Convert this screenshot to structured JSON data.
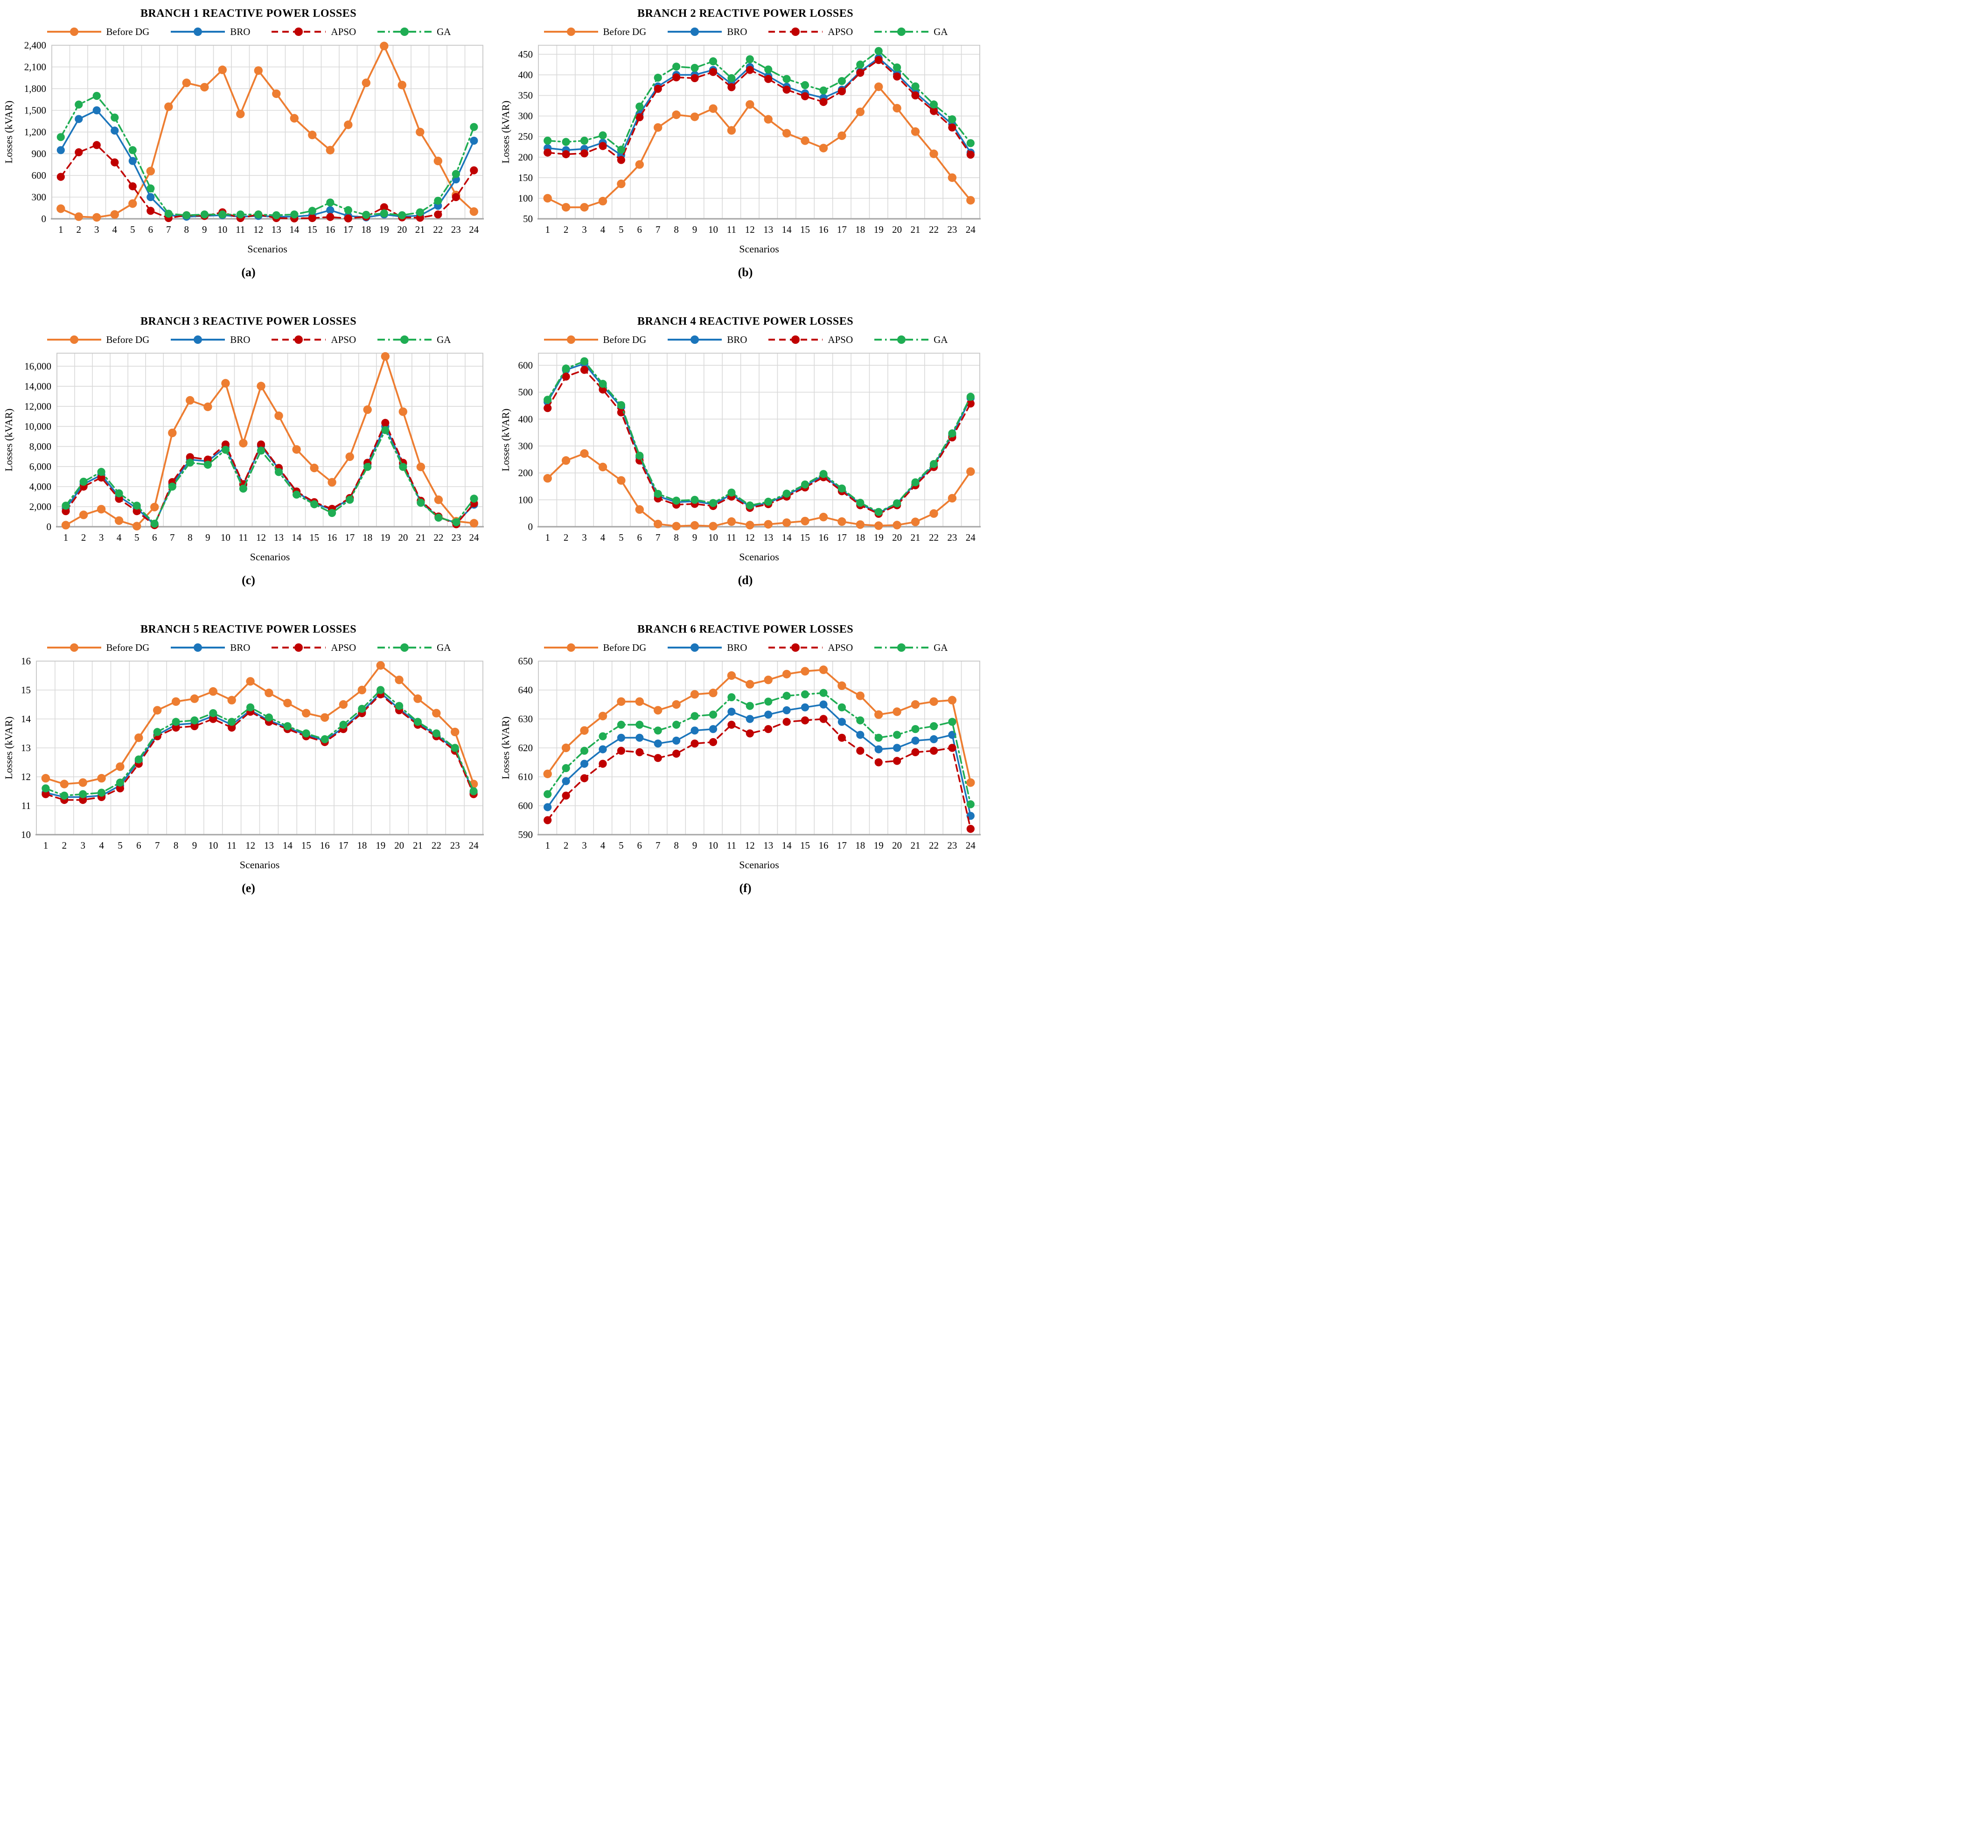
{
  "figure": {
    "background": "#ffffff",
    "grid_color": "#d9d9d9",
    "border_color": "#c9c9c9",
    "axis_color": "#a6a6a6"
  },
  "series_meta": [
    {
      "key": "before_dg",
      "label": "Before DG",
      "color": "#ED7D31",
      "dash": "solid"
    },
    {
      "key": "bro",
      "label": "BRO",
      "color": "#1B75BB",
      "dash": "solid"
    },
    {
      "key": "apso",
      "label": "APSO",
      "color": "#C00000",
      "dash": "dashed"
    },
    {
      "key": "ga",
      "label": "GA",
      "color": "#1FAD53",
      "dash": "dashdot"
    }
  ],
  "chart_data": [
    {
      "type": "line",
      "title": "BRANCH 1 REACTIVE POWER LOSSES",
      "caption": "(a)",
      "xlabel": "Scenarios",
      "ylabel": "Losses (kVAR)",
      "categories": [
        1,
        2,
        3,
        4,
        5,
        6,
        7,
        8,
        9,
        10,
        11,
        12,
        13,
        14,
        15,
        16,
        17,
        18,
        19,
        20,
        21,
        22,
        23,
        24
      ],
      "ylim": [
        0,
        2400
      ],
      "ytick_step": 300,
      "ytick_max": 2400,
      "legend_position": "top",
      "grid": true,
      "series": [
        {
          "name": "Before DG",
          "values": [
            140,
            30,
            20,
            60,
            210,
            660,
            1550,
            1880,
            1820,
            2060,
            1450,
            2050,
            1730,
            1390,
            1160,
            950,
            1300,
            1880,
            2390,
            1850,
            1200,
            800,
            330,
            100
          ]
        },
        {
          "name": "BRO",
          "values": [
            950,
            1380,
            1500,
            1220,
            800,
            300,
            50,
            30,
            40,
            50,
            30,
            40,
            30,
            30,
            50,
            120,
            40,
            20,
            60,
            30,
            45,
            180,
            545,
            1080
          ]
        },
        {
          "name": "APSO",
          "values": [
            580,
            920,
            1020,
            780,
            450,
            110,
            10,
            50,
            40,
            90,
            10,
            60,
            10,
            5,
            10,
            25,
            5,
            30,
            160,
            20,
            15,
            60,
            300,
            670
          ]
        },
        {
          "name": "GA",
          "values": [
            1130,
            1580,
            1700,
            1400,
            950,
            420,
            70,
            50,
            60,
            60,
            60,
            60,
            50,
            60,
            110,
            225,
            120,
            55,
            75,
            50,
            90,
            250,
            620,
            1270
          ]
        }
      ]
    },
    {
      "type": "line",
      "title": "BRANCH 2 REACTIVE POWER LOSSES",
      "caption": "(b)",
      "xlabel": "Scenarios",
      "ylabel": "Losses (kVAR)",
      "categories": [
        1,
        2,
        3,
        4,
        5,
        6,
        7,
        8,
        9,
        10,
        11,
        12,
        13,
        14,
        15,
        16,
        17,
        18,
        19,
        20,
        21,
        22,
        23,
        24
      ],
      "ylim": [
        50,
        472
      ],
      "ytick_step": 50,
      "ytick_max": 450,
      "legend_position": "top",
      "grid": true,
      "series": [
        {
          "name": "Before DG",
          "values": [
            100,
            78,
            78,
            93,
            135,
            182,
            272,
            303,
            298,
            318,
            265,
            328,
            292,
            258,
            240,
            222,
            252,
            310,
            371,
            319,
            262,
            208,
            150,
            95
          ]
        },
        {
          "name": "BRO",
          "values": [
            222,
            217,
            220,
            235,
            205,
            305,
            372,
            400,
            400,
            412,
            378,
            419,
            397,
            371,
            355,
            344,
            364,
            408,
            441,
            402,
            357,
            318,
            280,
            211
          ]
        },
        {
          "name": "APSO",
          "values": [
            211,
            207,
            209,
            227,
            193,
            297,
            366,
            394,
            392,
            407,
            370,
            412,
            390,
            364,
            348,
            334,
            360,
            405,
            436,
            396,
            350,
            312,
            272,
            206
          ]
        },
        {
          "name": "GA",
          "values": [
            240,
            237,
            240,
            253,
            218,
            323,
            393,
            420,
            417,
            433,
            392,
            438,
            413,
            390,
            375,
            362,
            385,
            425,
            458,
            418,
            372,
            328,
            292,
            234
          ]
        }
      ]
    },
    {
      "type": "line",
      "title": "BRANCH 3 REACTIVE POWER LOSSES",
      "caption": "(c)",
      "xlabel": "Scenarios",
      "ylabel": "Losses (kVAR)",
      "categories": [
        1,
        2,
        3,
        4,
        5,
        6,
        7,
        8,
        9,
        10,
        11,
        12,
        13,
        14,
        15,
        16,
        17,
        18,
        19,
        20,
        21,
        22,
        23,
        24
      ],
      "ylim": [
        0,
        17300
      ],
      "ytick_step": 2000,
      "ytick_max": 16000,
      "legend_position": "top",
      "grid": true,
      "series": [
        {
          "name": "Before DG",
          "values": [
            160,
            1180,
            1750,
            610,
            60,
            1960,
            9350,
            12600,
            11950,
            14300,
            8330,
            14020,
            11060,
            7700,
            5860,
            4430,
            6980,
            11670,
            16980,
            11470,
            5960,
            2690,
            550,
            350
          ]
        },
        {
          "name": "BRO",
          "values": [
            1840,
            4240,
            5160,
            3020,
            1840,
            200,
            4240,
            6690,
            6530,
            7920,
            4200,
            8060,
            5760,
            3470,
            2330,
            1700,
            2800,
            6250,
            10000,
            6250,
            2450,
            950,
            380,
            2200
          ]
        },
        {
          "name": "APSO",
          "values": [
            1550,
            4000,
            4900,
            2780,
            1550,
            160,
            4450,
            6940,
            6690,
            8200,
            4240,
            8200,
            5860,
            3510,
            2450,
            1780,
            2860,
            6370,
            10350,
            6370,
            2590,
            1020,
            245,
            2330
          ]
        },
        {
          "name": "GA",
          "values": [
            2100,
            4490,
            5470,
            3330,
            2100,
            300,
            4000,
            6390,
            6180,
            7670,
            3800,
            7590,
            5450,
            3200,
            2240,
            1370,
            2690,
            5960,
            9630,
            5960,
            2390,
            900,
            450,
            2800
          ]
        }
      ]
    },
    {
      "type": "line",
      "title": "BRANCH 4 REACTIVE POWER LOSSES",
      "caption": "(d)",
      "xlabel": "Scenarios",
      "ylabel": "Losses (kVAR)",
      "categories": [
        1,
        2,
        3,
        4,
        5,
        6,
        7,
        8,
        9,
        10,
        11,
        12,
        13,
        14,
        15,
        16,
        17,
        18,
        19,
        20,
        21,
        22,
        23,
        24
      ],
      "ylim": [
        0,
        645
      ],
      "ytick_step": 100,
      "ytick_max": 600,
      "legend_position": "top",
      "grid": true,
      "series": [
        {
          "name": "Before DG",
          "values": [
            180,
            246,
            272,
            222,
            172,
            64,
            10,
            2,
            5,
            2,
            19,
            6,
            9,
            15,
            21,
            36,
            19,
            8,
            4,
            6,
            18,
            49,
            106,
            205
          ]
        },
        {
          "name": "BRO",
          "values": [
            464,
            583,
            606,
            523,
            445,
            258,
            114,
            91,
            95,
            83,
            120,
            75,
            89,
            118,
            152,
            190,
            137,
            85,
            51,
            87,
            160,
            228,
            340,
            478
          ]
        },
        {
          "name": "APSO",
          "values": [
            441,
            558,
            583,
            510,
            425,
            246,
            105,
            82,
            85,
            77,
            112,
            70,
            84,
            112,
            146,
            184,
            132,
            80,
            48,
            80,
            154,
            222,
            332,
            458
          ]
        },
        {
          "name": "GA",
          "values": [
            472,
            588,
            615,
            531,
            452,
            264,
            122,
            97,
            100,
            88,
            127,
            79,
            93,
            123,
            157,
            196,
            142,
            89,
            55,
            87,
            165,
            233,
            347,
            483
          ]
        }
      ]
    },
    {
      "type": "line",
      "title": "BRANCH 5 REACTIVE POWER LOSSES",
      "caption": "(e)",
      "xlabel": "Scenarios",
      "ylabel": "Losses (kVAR)",
      "categories": [
        1,
        2,
        3,
        4,
        5,
        6,
        7,
        8,
        9,
        10,
        11,
        12,
        13,
        14,
        15,
        16,
        17,
        18,
        19,
        20,
        21,
        22,
        23,
        24
      ],
      "ylim": [
        10,
        16
      ],
      "ytick_step": 1,
      "ytick_max": 16,
      "legend_position": "top",
      "grid": true,
      "series": [
        {
          "name": "Before DG",
          "values": [
            11.95,
            11.75,
            11.8,
            11.95,
            12.35,
            13.35,
            14.3,
            14.6,
            14.7,
            14.95,
            14.65,
            15.3,
            14.9,
            14.55,
            14.2,
            14.05,
            14.5,
            15.0,
            15.85,
            15.35,
            14.7,
            14.2,
            13.55,
            11.75
          ]
        },
        {
          "name": "BRO",
          "values": [
            11.45,
            11.3,
            11.3,
            11.35,
            11.7,
            12.55,
            13.45,
            13.8,
            13.85,
            14.1,
            13.8,
            14.3,
            13.95,
            13.7,
            13.45,
            13.25,
            13.7,
            14.25,
            14.9,
            14.35,
            13.85,
            13.45,
            12.95,
            11.45
          ]
        },
        {
          "name": "APSO",
          "values": [
            11.4,
            11.2,
            11.2,
            11.3,
            11.6,
            12.45,
            13.4,
            13.7,
            13.75,
            14.0,
            13.7,
            14.25,
            13.9,
            13.65,
            13.4,
            13.2,
            13.65,
            14.2,
            14.85,
            14.3,
            13.8,
            13.4,
            12.9,
            11.4
          ]
        },
        {
          "name": "GA",
          "values": [
            11.6,
            11.35,
            11.4,
            11.45,
            11.8,
            12.6,
            13.55,
            13.9,
            13.95,
            14.2,
            13.9,
            14.4,
            14.05,
            13.75,
            13.5,
            13.3,
            13.8,
            14.35,
            15.0,
            14.45,
            13.9,
            13.5,
            13.0,
            11.5
          ]
        }
      ]
    },
    {
      "type": "line",
      "title": "BRANCH 6 REACTIVE POWER LOSSES",
      "caption": "(f)",
      "xlabel": "Scenarios",
      "ylabel": "Losses (kVAR)",
      "categories": [
        1,
        2,
        3,
        4,
        5,
        6,
        7,
        8,
        9,
        10,
        11,
        12,
        13,
        14,
        15,
        16,
        17,
        18,
        19,
        20,
        21,
        22,
        23,
        24
      ],
      "ylim": [
        590,
        650
      ],
      "ytick_step": 10,
      "ytick_max": 650,
      "legend_position": "top",
      "grid": true,
      "series": [
        {
          "name": "Before DG",
          "values": [
            611,
            620,
            626,
            631,
            636,
            636,
            633,
            635,
            638.5,
            639,
            645,
            642,
            643.5,
            645.5,
            646.5,
            647,
            641.5,
            638,
            631.5,
            632.5,
            635,
            636,
            636.5,
            608
          ]
        },
        {
          "name": "BRO",
          "values": [
            599.5,
            608.5,
            614.5,
            619.5,
            623.5,
            623.5,
            621.5,
            622.5,
            626,
            626.5,
            632.5,
            630,
            631.5,
            633,
            634,
            635,
            629,
            624.5,
            619.5,
            620,
            622.5,
            623,
            624.5,
            596.5
          ]
        },
        {
          "name": "APSO",
          "values": [
            595,
            603.5,
            609.5,
            614.5,
            619,
            618.5,
            616.5,
            618,
            621.5,
            622,
            628,
            625,
            626.5,
            629,
            629.5,
            630,
            623.5,
            619,
            615,
            615.5,
            618.5,
            619,
            620,
            592
          ]
        },
        {
          "name": "GA",
          "values": [
            604,
            613,
            619,
            624,
            628,
            628,
            626,
            628,
            631,
            631.5,
            637.5,
            634.5,
            636,
            638,
            638.5,
            639,
            634,
            629.5,
            623.5,
            624.5,
            626.5,
            627.5,
            629,
            600.5
          ]
        }
      ]
    }
  ]
}
